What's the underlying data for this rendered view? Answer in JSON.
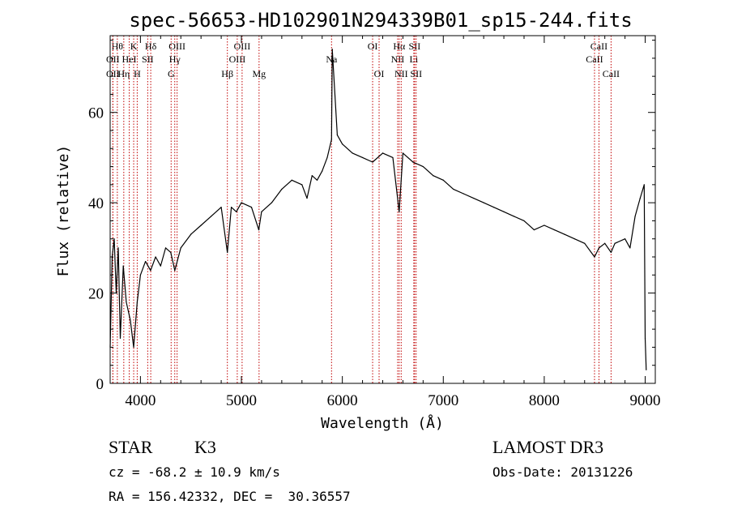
{
  "chart_data": {
    "type": "line",
    "title": "spec-56653-HD102901N294339B01_sp15-244.fits",
    "xlabel": "Wavelength (Å)",
    "ylabel": "Flux (relative)",
    "xlim": [
      3700,
      9100
    ],
    "ylim": [
      0,
      77
    ],
    "xticks": [
      4000,
      5000,
      6000,
      7000,
      8000,
      9000
    ],
    "yticks": [
      0,
      20,
      40,
      60
    ],
    "series": [
      {
        "name": "spectrum",
        "x": [
          3700,
          3720,
          3740,
          3760,
          3780,
          3800,
          3830,
          3860,
          3900,
          3933,
          3968,
          4000,
          4050,
          4100,
          4150,
          4200,
          4250,
          4300,
          4340,
          4400,
          4500,
          4600,
          4700,
          4800,
          4861,
          4900,
          4950,
          5000,
          5100,
          5172,
          5200,
          5300,
          5400,
          5500,
          5600,
          5650,
          5700,
          5750,
          5800,
          5850,
          5893,
          5900,
          5950,
          6000,
          6100,
          6200,
          6300,
          6400,
          6500,
          6563,
          6600,
          6700,
          6800,
          6900,
          7000,
          7100,
          7200,
          7300,
          7400,
          7500,
          7600,
          7700,
          7800,
          7900,
          8000,
          8100,
          8200,
          8300,
          8400,
          8498,
          8542,
          8600,
          8662,
          8700,
          8800,
          8850,
          8900,
          8950,
          8990,
          9000,
          9010
        ],
        "y": [
          8,
          28,
          32,
          20,
          30,
          10,
          26,
          18,
          14,
          8,
          18,
          24,
          27,
          25,
          28,
          26,
          30,
          29,
          25,
          30,
          33,
          35,
          37,
          39,
          29,
          39,
          38,
          40,
          39,
          34,
          38,
          40,
          43,
          45,
          44,
          41,
          46,
          45,
          47,
          50,
          54,
          74,
          55,
          53,
          51,
          50,
          49,
          51,
          50,
          38,
          51,
          49,
          48,
          46,
          45,
          43,
          42,
          41,
          40,
          39,
          38,
          37,
          36,
          34,
          35,
          34,
          33,
          32,
          31,
          28,
          30,
          31,
          29,
          31,
          32,
          30,
          37,
          41,
          44,
          10,
          3
        ]
      }
    ],
    "line_markers": [
      {
        "w": 3771,
        "row": 0,
        "label": "Hθ"
      },
      {
        "w": 3727,
        "row": 1,
        "label": "OII"
      },
      {
        "w": 3727,
        "row": 2,
        "label": "OII"
      },
      {
        "w": 3835,
        "row": 2,
        "label": "Hη"
      },
      {
        "w": 3889,
        "row": 1,
        "label": "HeI"
      },
      {
        "w": 3933,
        "row": 0,
        "label": "K"
      },
      {
        "w": 3968,
        "row": 2,
        "label": "H"
      },
      {
        "w": 4072,
        "row": 1,
        "label": "SII"
      },
      {
        "w": 4102,
        "row": 0,
        "label": "Hδ"
      },
      {
        "w": 4304,
        "row": 2,
        "label": "G"
      },
      {
        "w": 4340,
        "row": 1,
        "label": "Hγ"
      },
      {
        "w": 4363,
        "row": 0,
        "label": "OIII"
      },
      {
        "w": 4861,
        "row": 2,
        "label": "Hβ"
      },
      {
        "w": 4959,
        "row": 1,
        "label": "OIII"
      },
      {
        "w": 5007,
        "row": 0,
        "label": "OIII"
      },
      {
        "w": 5175,
        "row": 2,
        "label": "Mg"
      },
      {
        "w": 5893,
        "row": 1,
        "label": "Na"
      },
      {
        "w": 6300,
        "row": 0,
        "label": "OI"
      },
      {
        "w": 6364,
        "row": 2,
        "label": "OI"
      },
      {
        "w": 6548,
        "row": 1,
        "label": "NII"
      },
      {
        "w": 6563,
        "row": 0,
        "label": "Hα"
      },
      {
        "w": 6583,
        "row": 2,
        "label": "NII"
      },
      {
        "w": 6708,
        "row": 1,
        "label": "Li"
      },
      {
        "w": 6716,
        "row": 0,
        "label": "SII"
      },
      {
        "w": 6731,
        "row": 2,
        "label": "SII"
      },
      {
        "w": 8498,
        "row": 1,
        "label": "CaII"
      },
      {
        "w": 8542,
        "row": 0,
        "label": "CaII"
      },
      {
        "w": 8662,
        "row": 2,
        "label": "CaII"
      }
    ],
    "colors": {
      "spectrum": "#000000",
      "markers": "#c00000",
      "axes": "#000000"
    }
  },
  "info": {
    "object_class": "STAR",
    "subclass": "K3",
    "survey": "LAMOST DR3",
    "redshift": "cz = -68.2 ± 10.9 km/s",
    "obs_date": "Obs-Date: 20131226",
    "coords": "RA = 156.42332, DEC =  30.36557"
  }
}
